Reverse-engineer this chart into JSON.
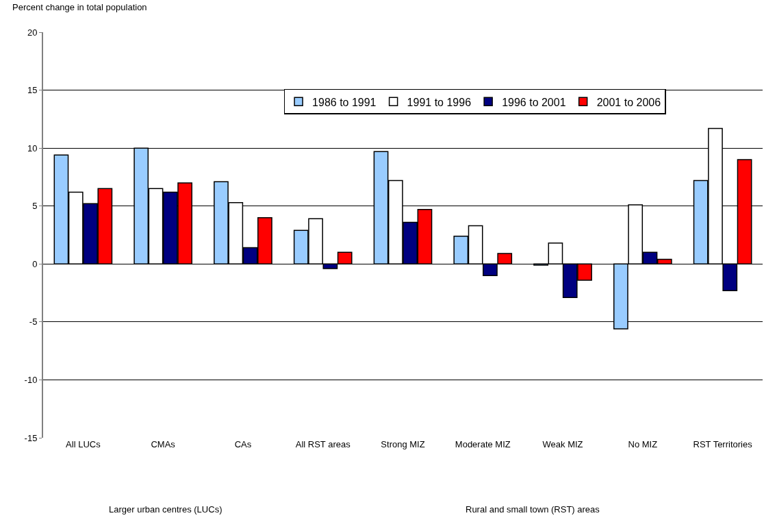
{
  "chart_data": {
    "type": "bar",
    "ylabel": "Percent change in total population",
    "categories": [
      "All LUCs",
      "CMAs",
      "CAs",
      "All RST areas",
      "Strong MIZ",
      "Moderate MIZ",
      "Weak MIZ",
      "No MIZ",
      "RST Territories"
    ],
    "series": [
      {
        "name": "1986 to 1991",
        "color": "#99ccff",
        "values": [
          9.4,
          10.0,
          7.1,
          2.9,
          9.7,
          2.4,
          -0.1,
          -5.6,
          7.2
        ]
      },
      {
        "name": "1991 to 1996",
        "color": "#ffffff",
        "values": [
          6.2,
          6.5,
          5.3,
          3.9,
          7.2,
          3.3,
          1.8,
          5.1,
          11.7
        ]
      },
      {
        "name": "1996 to 2001",
        "color": "#000080",
        "values": [
          5.2,
          6.2,
          1.4,
          -0.4,
          3.6,
          -1.0,
          -2.9,
          1.0,
          -2.3
        ]
      },
      {
        "name": "2001 to 2006",
        "color": "#ff0000",
        "values": [
          6.5,
          7.0,
          4.0,
          1.0,
          4.7,
          0.9,
          -1.4,
          0.4,
          9.0
        ]
      }
    ],
    "ylim": [
      -15,
      20
    ],
    "yticks": [
      -15,
      -10,
      -5,
      0,
      5,
      10,
      15,
      20
    ],
    "grid": "y",
    "legend": "top",
    "annotations": [
      "Larger urban centres (LUCs)",
      "Rural and small town (RST) areas"
    ]
  }
}
